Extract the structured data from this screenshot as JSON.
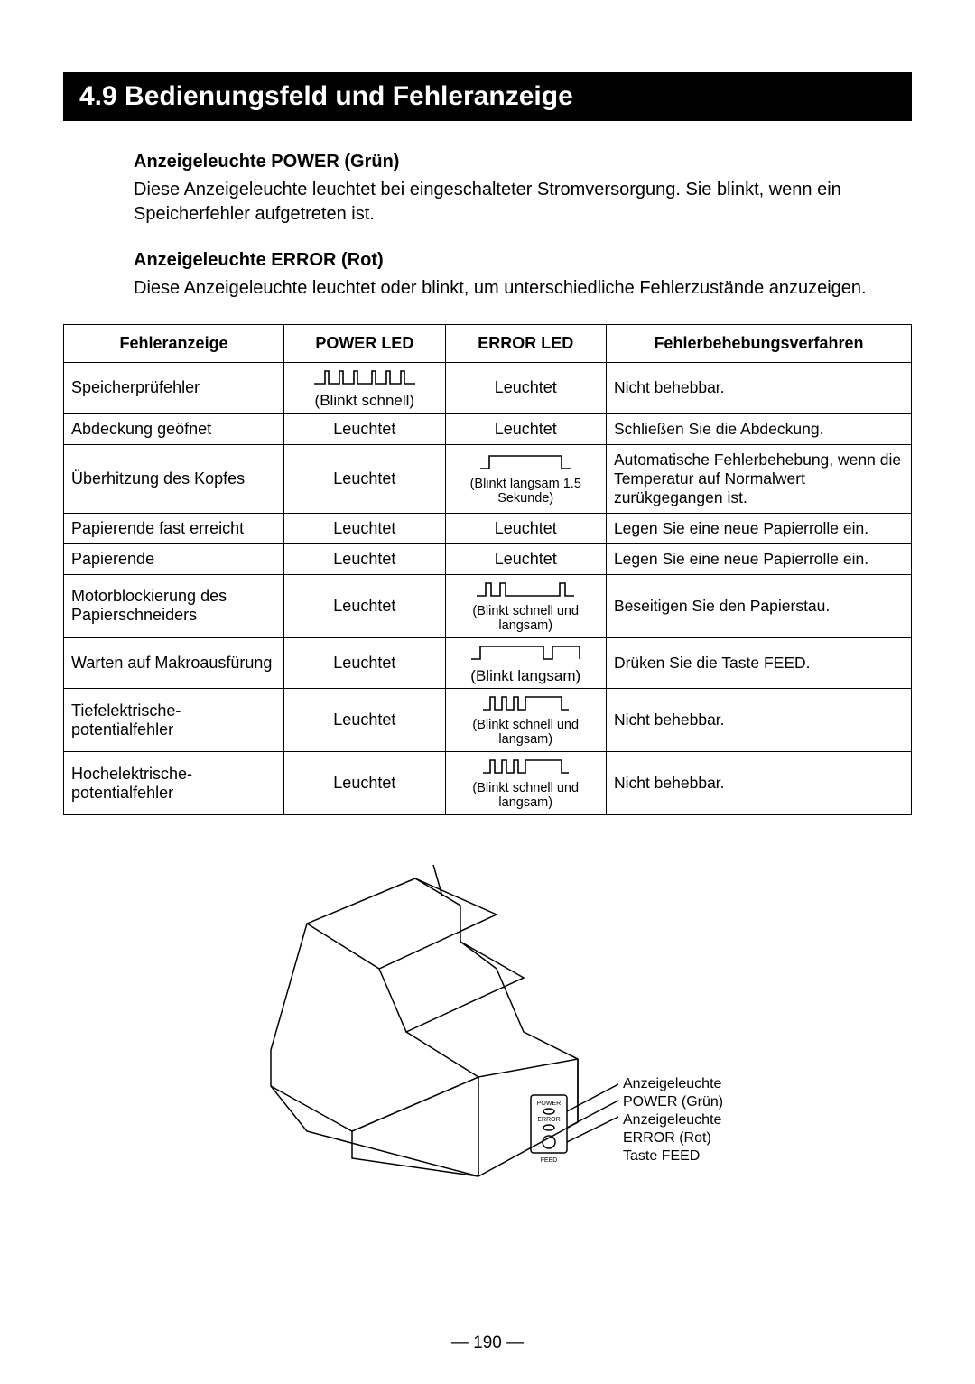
{
  "header": "4.9 Bedienungsfeld und Fehleranzeige",
  "power": {
    "heading": "Anzeigeleuchte POWER (Grün)",
    "text": "Diese Anzeigeleuchte leuchtet bei eingeschalteter Stromversorgung. Sie blinkt, wenn ein Speicherfehler aufgetreten ist."
  },
  "error": {
    "heading": "Anzeigeleuchte ERROR (Rot)",
    "text": "Diese Anzeigeleuchte leuchtet oder blinkt, um unterschiedliche Fehlerzustände anzuzeigen."
  },
  "table": {
    "headers": [
      "Fehleranzeige",
      "POWER LED",
      "ERROR LED",
      "Fehlerbehebungsverfahren"
    ],
    "rows": [
      {
        "fault": "Speicherprüfehler",
        "power": {
          "type": "blink",
          "pattern": "fast",
          "caption": "(Blinkt schnell)"
        },
        "errorLed": {
          "type": "text",
          "text": "Leuchtet"
        },
        "solution": "Nicht behebbar."
      },
      {
        "fault": "Abdeckung geöfnet",
        "power": {
          "type": "text",
          "text": "Leuchtet"
        },
        "errorLed": {
          "type": "text",
          "text": "Leuchtet"
        },
        "solution": "Schließen Sie die Abdeckung."
      },
      {
        "fault": "Überhitzung des Kopfes",
        "power": {
          "type": "text",
          "text": "Leuchtet"
        },
        "errorLed": {
          "type": "blink",
          "pattern": "single-slow",
          "caption": "(Blinkt langsam 1.5 Sekunde)"
        },
        "solution": "Automatische Fehlerbehebung, wenn die Temperatur auf Normalwert zurükgegangen ist."
      },
      {
        "fault": "Papierende fast erreicht",
        "power": {
          "type": "text",
          "text": "Leuchtet"
        },
        "errorLed": {
          "type": "text",
          "text": "Leuchtet"
        },
        "solution": "Legen Sie eine neue Papierrolle ein."
      },
      {
        "fault": "Papierende",
        "power": {
          "type": "text",
          "text": "Leuchtet"
        },
        "errorLed": {
          "type": "text",
          "text": "Leuchtet"
        },
        "solution": "Legen Sie eine neue Papierrolle ein."
      },
      {
        "fault": "Motorblockierung des Papierschneiders",
        "power": {
          "type": "text",
          "text": "Leuchtet"
        },
        "errorLed": {
          "type": "blink",
          "pattern": "mixed",
          "caption": "(Blinkt schnell und langsam)"
        },
        "solution": "Beseitigen Sie den Papierstau."
      },
      {
        "fault": "Warten auf Makroausfürung",
        "power": {
          "type": "text",
          "text": "Leuchtet"
        },
        "errorLed": {
          "type": "blink",
          "pattern": "slow",
          "caption": "(Blinkt langsam)"
        },
        "solution": "Drüken Sie die Taste FEED."
      },
      {
        "fault": "Tiefelektrische-potentialfehler",
        "power": {
          "type": "text",
          "text": "Leuchtet"
        },
        "errorLed": {
          "type": "blink",
          "pattern": "group",
          "caption": "(Blinkt schnell und langsam)"
        },
        "solution": "Nicht behebbar."
      },
      {
        "fault": "Hochelektrische-potentialfehler",
        "power": {
          "type": "text",
          "text": "Leuchtet"
        },
        "errorLed": {
          "type": "blink",
          "pattern": "group",
          "caption": "(Blinkt schnell und langsam)"
        },
        "solution": "Nicht behebbar."
      }
    ]
  },
  "diagram": {
    "label1": "Anzeigeleuchte POWER (Grün)",
    "label2": "Anzeigeleuchte ERROR (Rot)",
    "label3": "Taste FEED",
    "panel": {
      "power": "POWER",
      "error": "ERROR",
      "feed": "FEED"
    }
  },
  "pageNumber": "— 190 —",
  "colors": {
    "black": "#000000",
    "white": "#ffffff",
    "stroke": "#000000"
  },
  "colWidths": [
    "26%",
    "19%",
    "19%",
    "36%"
  ]
}
